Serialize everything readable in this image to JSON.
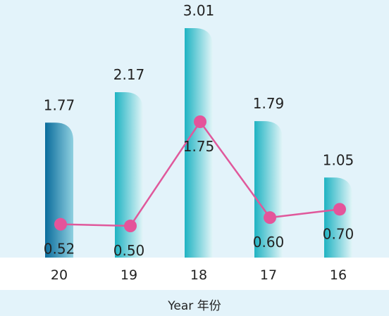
{
  "chart_data": {
    "type": "bar",
    "categories": [
      "20",
      "19",
      "18",
      "17",
      "16"
    ],
    "bar_values": [
      1.77,
      2.17,
      3.01,
      1.79,
      1.05
    ],
    "bar_labels": [
      "1.77",
      "2.17",
      "3.01",
      "1.79",
      "1.05"
    ],
    "line_values": [
      0.52,
      0.5,
      1.75,
      0.6,
      0.7
    ],
    "line_labels": [
      "0.52",
      "0.50",
      "1.75",
      "0.60",
      "0.70"
    ],
    "xlabel": "Year 年份",
    "ylabel": "",
    "ylim": [
      0,
      3.2
    ],
    "line_ylim": [
      0,
      3.0
    ],
    "highlight_index": 0,
    "grid": false,
    "colors": {
      "background": "#e3f3fa",
      "axis_band": "#ffffff",
      "bar_highlight_dark": "#0a6c9c",
      "bar_highlight_light": "#8fd0e0",
      "bar_dark": "#1fb3c2",
      "bar_light": "#e3f5f8",
      "line": "#e0589b",
      "marker": "#e4549a",
      "text": "#222222"
    }
  }
}
